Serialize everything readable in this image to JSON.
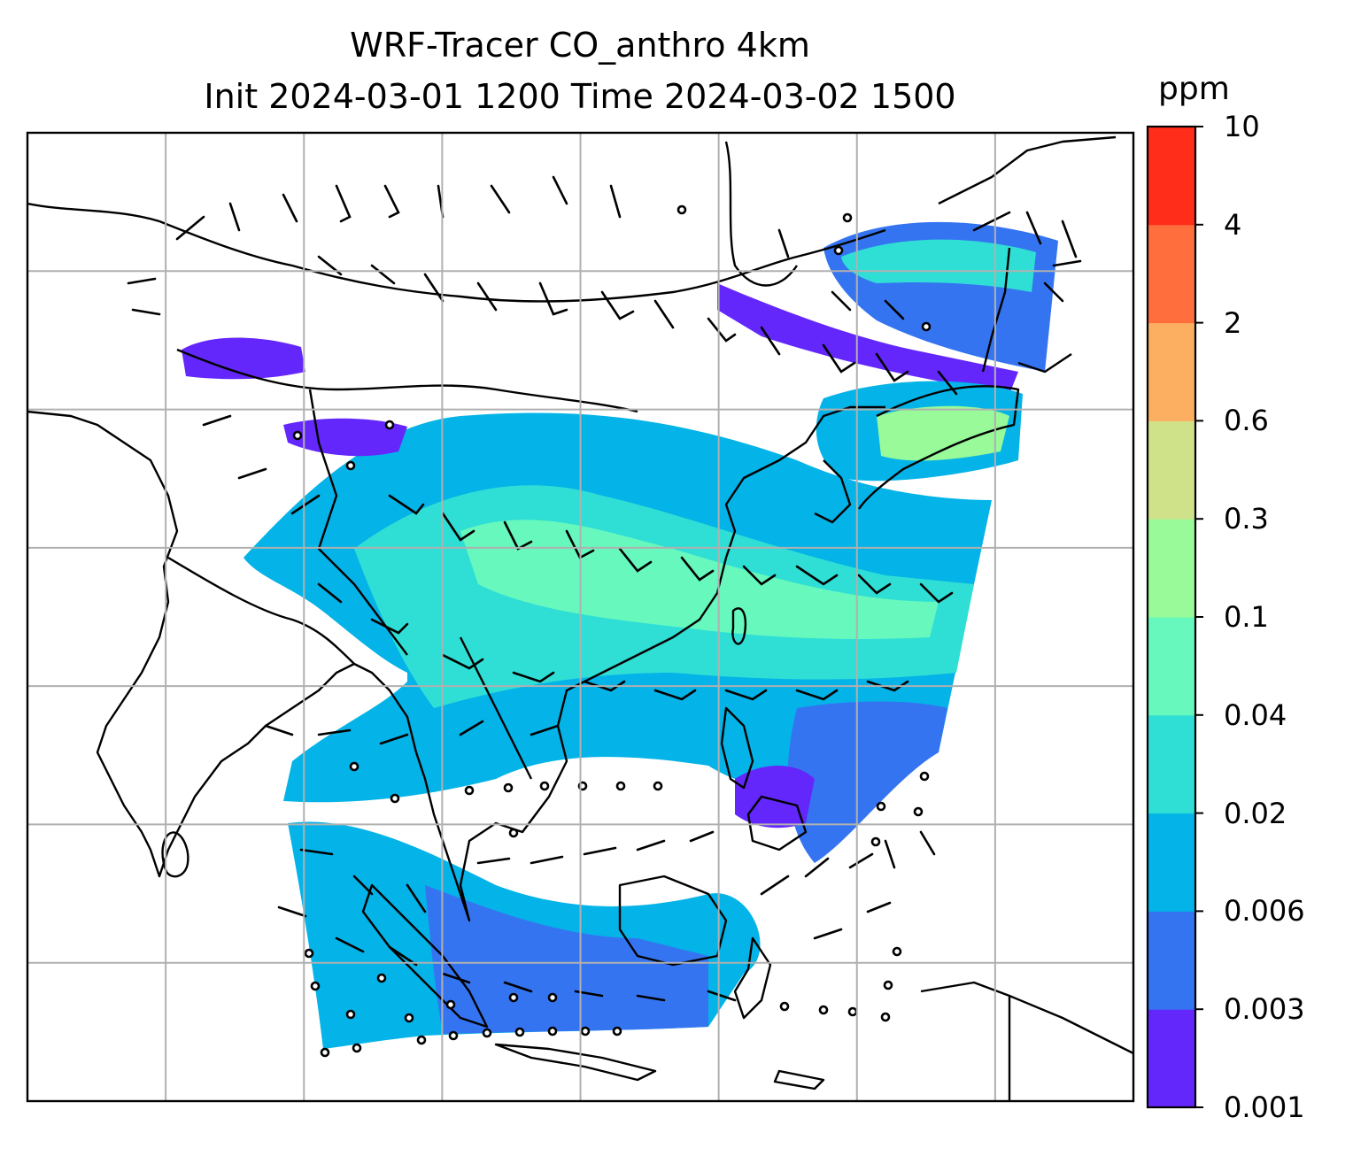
{
  "figure": {
    "title_line1": "WRF-Tracer CO_anthro 4km",
    "title_line2": "Init 2024-03-01 1200 Time 2024-03-02 1500"
  },
  "colorbar": {
    "unit": "ppm",
    "ticks": [
      "0.001",
      "0.003",
      "0.006",
      "0.02",
      "0.04",
      "0.1",
      "0.3",
      "0.6",
      "2",
      "4",
      "10"
    ],
    "colors": [
      "#6427fb",
      "#3574f1",
      "#04b3e7",
      "#2fdfd5",
      "#67f8bd",
      "#98fa98",
      "#cfe28a",
      "#fcae61",
      "#ff6e3c",
      "#ff2d1a"
    ]
  },
  "map": {
    "gridline_color": "#b0b0b0",
    "coastline_color": "#000000",
    "barb_color": "#000000",
    "grid_columns": 8,
    "grid_rows": 7
  }
}
